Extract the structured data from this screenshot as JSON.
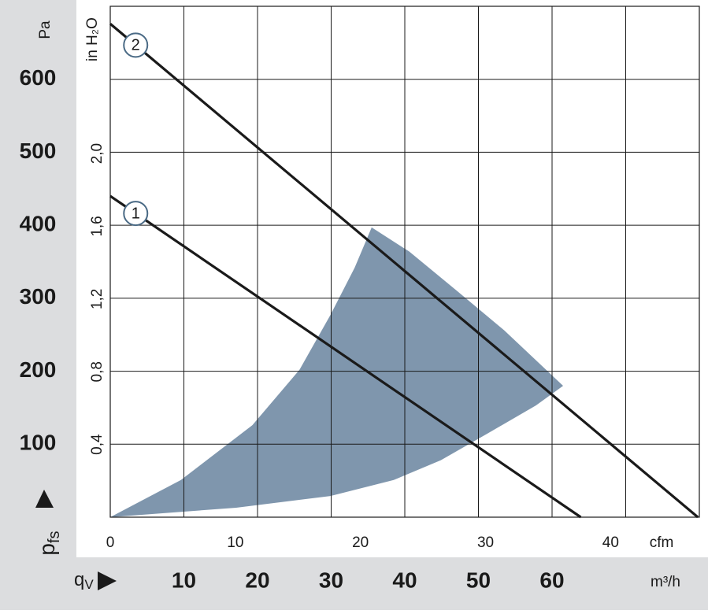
{
  "chart_data": {
    "type": "fan-curve",
    "y_label": "p",
    "y_label_sub": "fs",
    "y_unit": "Pa",
    "y2_unit": "in H₂O",
    "x_label": "q",
    "x_label_sub": "V",
    "x_unit": "m³/h",
    "x2_unit": "cfm",
    "xlim": [
      0,
      80
    ],
    "xticks": [
      10,
      20,
      30,
      40,
      50,
      60
    ],
    "x2lim": [
      0,
      47.09
    ],
    "x2ticks": [
      0,
      10,
      20,
      30,
      40
    ],
    "ylim": [
      0,
      700
    ],
    "yticks": [
      100,
      200,
      300,
      400,
      500,
      600
    ],
    "y2lim": [
      0,
      2.81
    ],
    "y2ticks": [
      {
        "value": 0.4,
        "label": "0,4"
      },
      {
        "value": 0.8,
        "label": "0,8"
      },
      {
        "value": 1.2,
        "label": "1,2"
      },
      {
        "value": 1.6,
        "label": "1,6"
      },
      {
        "value": 2.0,
        "label": "2,0"
      }
    ],
    "grid": true,
    "region": {
      "color": "#7f96ad",
      "x": [
        0,
        9.6,
        19.3,
        25.7,
        29.9,
        33.2,
        35.5,
        40.6,
        47.1,
        53.5,
        61.5,
        57.8,
        51.3,
        44.9,
        38.5,
        29.9,
        17.1,
        0
      ],
      "y": [
        0,
        51,
        126,
        202,
        277,
        342,
        397,
        364,
        310,
        256,
        180,
        153,
        115,
        78,
        51,
        29,
        13,
        0
      ]
    },
    "series": [
      {
        "name": "1",
        "color": "#1a1a1a",
        "x": [
          0,
          63.9
        ],
        "values": [
          440,
          0
        ]
      },
      {
        "name": "2",
        "color": "#1a1a1a",
        "x": [
          0,
          79.8
        ],
        "values": [
          676,
          0
        ]
      }
    ]
  }
}
